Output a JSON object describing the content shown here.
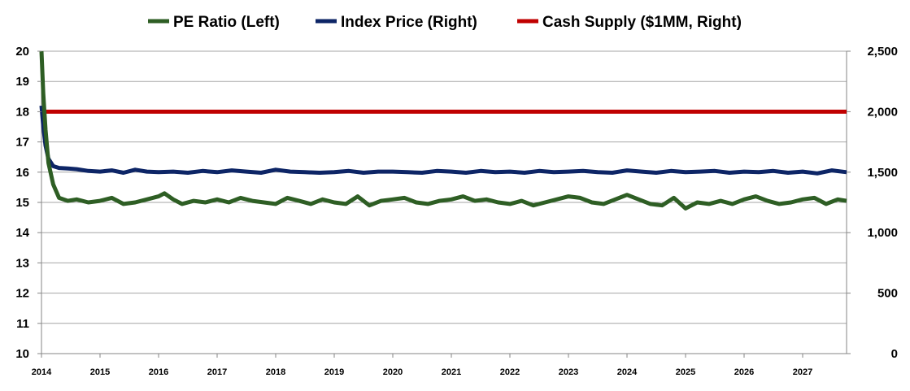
{
  "chart_data": {
    "type": "line",
    "title": "",
    "legend_position": "top",
    "grid": true,
    "x": {
      "range": [
        2014.0,
        2027.75
      ],
      "ticks": [
        "2014",
        "2015",
        "2016",
        "2017",
        "2018",
        "2019",
        "2020",
        "2021",
        "2022",
        "2023",
        "2024",
        "2025",
        "2026",
        "2027"
      ]
    },
    "y_left": {
      "range": [
        10,
        20
      ],
      "ticks": [
        "10",
        "11",
        "12",
        "13",
        "14",
        "15",
        "16",
        "17",
        "18",
        "19",
        "20"
      ]
    },
    "y_right": {
      "range": [
        0,
        2500
      ],
      "ticks": [
        "0",
        "500",
        "1,000",
        "1,500",
        "2,000",
        "2,500"
      ]
    },
    "series": [
      {
        "name": "PE Ratio (Left)",
        "axis": "left",
        "color": "#2e5e24",
        "x": [
          2014.0,
          2014.03,
          2014.07,
          2014.12,
          2014.2,
          2014.3,
          2014.45,
          2014.6,
          2014.8,
          2015.0,
          2015.2,
          2015.4,
          2015.6,
          2015.8,
          2016.0,
          2016.1,
          2016.25,
          2016.4,
          2016.6,
          2016.8,
          2017.0,
          2017.2,
          2017.4,
          2017.6,
          2017.8,
          2018.0,
          2018.2,
          2018.4,
          2018.6,
          2018.8,
          2019.0,
          2019.2,
          2019.4,
          2019.6,
          2019.8,
          2020.0,
          2020.2,
          2020.4,
          2020.6,
          2020.8,
          2021.0,
          2021.2,
          2021.4,
          2021.6,
          2021.8,
          2022.0,
          2022.2,
          2022.4,
          2022.6,
          2022.8,
          2023.0,
          2023.2,
          2023.4,
          2023.6,
          2023.8,
          2024.0,
          2024.2,
          2024.4,
          2024.6,
          2024.8,
          2025.0,
          2025.2,
          2025.4,
          2025.6,
          2025.8,
          2026.0,
          2026.2,
          2026.4,
          2026.6,
          2026.8,
          2027.0,
          2027.2,
          2027.4,
          2027.6,
          2027.75
        ],
        "values": [
          20.0,
          18.6,
          17.4,
          16.3,
          15.6,
          15.15,
          15.05,
          15.1,
          15.0,
          15.05,
          15.15,
          14.95,
          15.0,
          15.1,
          15.2,
          15.3,
          15.1,
          14.95,
          15.05,
          15.0,
          15.1,
          15.0,
          15.15,
          15.05,
          15.0,
          14.95,
          15.15,
          15.05,
          14.95,
          15.1,
          15.0,
          14.95,
          15.2,
          14.9,
          15.05,
          15.1,
          15.15,
          15.0,
          14.95,
          15.05,
          15.1,
          15.2,
          15.05,
          15.1,
          15.0,
          14.95,
          15.05,
          14.9,
          15.0,
          15.1,
          15.2,
          15.15,
          15.0,
          14.95,
          15.1,
          15.25,
          15.1,
          14.95,
          14.9,
          15.15,
          14.8,
          15.0,
          14.95,
          15.05,
          14.95,
          15.1,
          15.2,
          15.05,
          14.95,
          15.0,
          15.1,
          15.15,
          14.95,
          15.1,
          15.05
        ]
      },
      {
        "name": "Index Price (Right)",
        "axis": "right",
        "color": "#0d2566",
        "x": [
          2014.0,
          2014.03,
          2014.07,
          2014.12,
          2014.2,
          2014.3,
          2014.45,
          2014.6,
          2014.8,
          2015.0,
          2015.2,
          2015.4,
          2015.6,
          2015.8,
          2016.0,
          2016.25,
          2016.5,
          2016.75,
          2017.0,
          2017.25,
          2017.5,
          2017.75,
          2018.0,
          2018.25,
          2018.5,
          2018.75,
          2019.0,
          2019.25,
          2019.5,
          2019.75,
          2020.0,
          2020.25,
          2020.5,
          2020.75,
          2021.0,
          2021.25,
          2021.5,
          2021.75,
          2022.0,
          2022.25,
          2022.5,
          2022.75,
          2023.0,
          2023.25,
          2023.5,
          2023.75,
          2024.0,
          2024.25,
          2024.5,
          2024.75,
          2025.0,
          2025.25,
          2025.5,
          2025.75,
          2026.0,
          2026.25,
          2026.5,
          2026.75,
          2027.0,
          2027.25,
          2027.5,
          2027.75
        ],
        "values": [
          2050,
          1880,
          1720,
          1610,
          1550,
          1535,
          1530,
          1525,
          1510,
          1505,
          1515,
          1495,
          1520,
          1505,
          1500,
          1505,
          1495,
          1510,
          1500,
          1515,
          1505,
          1495,
          1520,
          1505,
          1500,
          1495,
          1500,
          1510,
          1495,
          1505,
          1505,
          1500,
          1495,
          1510,
          1505,
          1495,
          1510,
          1500,
          1505,
          1495,
          1510,
          1500,
          1505,
          1510,
          1500,
          1495,
          1515,
          1505,
          1495,
          1510,
          1500,
          1505,
          1510,
          1495,
          1505,
          1500,
          1510,
          1495,
          1505,
          1490,
          1515,
          1500
        ]
      },
      {
        "name": "Cash Supply ($1MM, Right)",
        "axis": "right",
        "color": "#c00000",
        "x": [
          2014.0,
          2027.75
        ],
        "values": [
          2000,
          2000
        ]
      }
    ]
  }
}
